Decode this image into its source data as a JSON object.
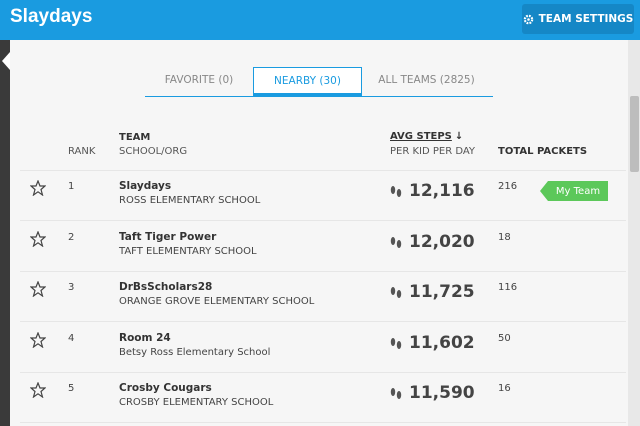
{
  "header": {
    "title": "Slaydays",
    "button": "TEAM SETTINGS"
  },
  "tabs": [
    {
      "label": "FAVORITE (0)"
    },
    {
      "label": "NEARBY (30)",
      "active": true
    },
    {
      "label": "ALL TEAMS (2825)"
    }
  ],
  "table": {
    "columns": {
      "rank": "RANK",
      "team": "TEAM",
      "school": "SCHOOL/ORG",
      "steps": "AVG STEPS",
      "steps_sort": "↓",
      "steps_sub": "PER KID PER DAY",
      "packets": "TOTAL PACKETS"
    },
    "rows": [
      {
        "rank": "1",
        "team": "Slaydays",
        "school": "ROSS ELEMENTARY SCHOOL",
        "steps": "12,116",
        "packets": "216",
        "badge": "My Team"
      },
      {
        "rank": "2",
        "team": "Taft Tiger Power",
        "school": "TAFT ELEMENTARY SCHOOL",
        "steps": "12,020",
        "packets": "18"
      },
      {
        "rank": "3",
        "team": "DrBsScholars28",
        "school": "ORANGE GROVE ELEMENTARY SCHOOL",
        "steps": "11,725",
        "packets": "116"
      },
      {
        "rank": "4",
        "team": "Room 24",
        "school": "Betsy Ross Elementary School",
        "steps": "11,602",
        "packets": "50"
      },
      {
        "rank": "5",
        "team": "Crosby Cougars",
        "school": "CROSBY ELEMENTARY SCHOOL",
        "steps": "11,590",
        "packets": "16"
      }
    ]
  }
}
